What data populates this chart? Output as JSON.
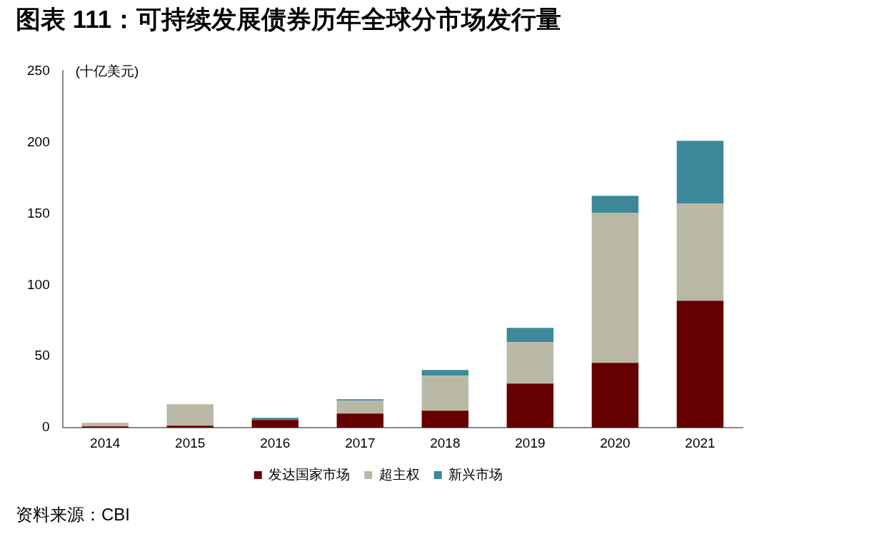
{
  "chart_data": {
    "type": "bar",
    "title": "图表 111：可持续发展债券历年全球分市场发行量",
    "ylabel": "(十亿美元)",
    "categories": [
      "2014",
      "2015",
      "2016",
      "2017",
      "2018",
      "2019",
      "2020",
      "2021"
    ],
    "series": [
      {
        "name": "发达国家市场",
        "color": "#660000",
        "values": [
          1,
          1.5,
          5.5,
          10,
          12,
          31,
          45.5,
          89
        ]
      },
      {
        "name": "超主权",
        "color": "#b9b8a5",
        "values": [
          2.5,
          15,
          0,
          9,
          24.5,
          29,
          105,
          68
        ]
      },
      {
        "name": "新兴市场",
        "color": "#3d889b",
        "values": [
          0,
          0,
          1.5,
          1,
          4,
          10,
          12,
          44
        ]
      }
    ],
    "stacked": true,
    "ylim": [
      0,
      250
    ],
    "yticks": [
      0,
      50,
      100,
      150,
      200,
      250
    ],
    "grid": false,
    "legend": "bottom",
    "annotations": [
      "资料来源：CBI"
    ]
  }
}
